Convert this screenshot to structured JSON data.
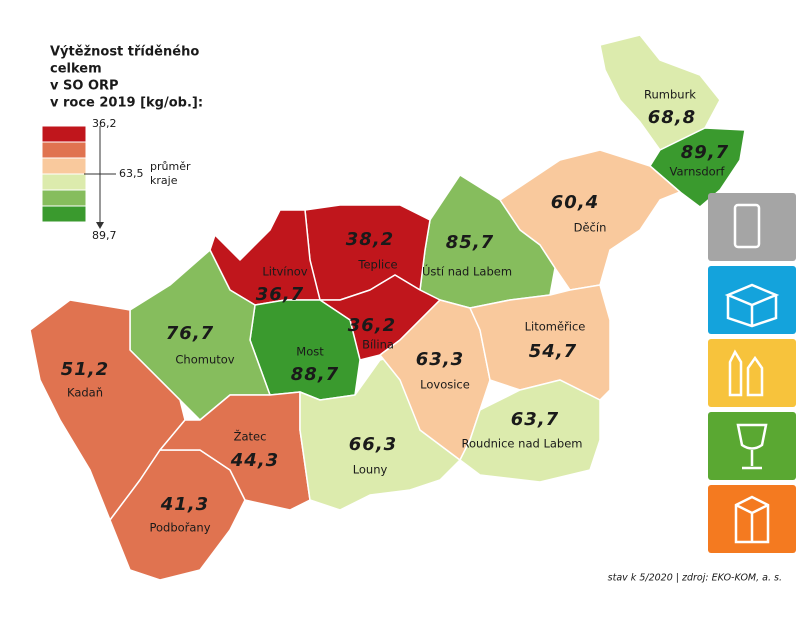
{
  "title": [
    "Výtěžnost tříděného",
    "celkem",
    "v SO ORP",
    "v roce 2019 [kg/ob.]:"
  ],
  "legend": {
    "colors": [
      "#c0161c",
      "#e07350",
      "#f9c99d",
      "#dcebad",
      "#86bd5d",
      "#3a9a2e"
    ],
    "top": "36,2",
    "middle": "63,5",
    "middle_note": [
      "průměr",
      "kraje"
    ],
    "bottom": "89,7"
  },
  "regions": [
    {
      "name": "Rumburk",
      "value": "68,8",
      "color": "#dcebad"
    },
    {
      "name": "Varnsdorf",
      "value": "89,7",
      "color": "#3a9a2e"
    },
    {
      "name": "Děčín",
      "value": "60,4",
      "color": "#f9c99d"
    },
    {
      "name": "Ústí nad Labem",
      "value": "85,7",
      "color": "#86bd5d"
    },
    {
      "name": "Teplice",
      "value": "38,2",
      "color": "#c0161c"
    },
    {
      "name": "Litvínov",
      "value": "36,7",
      "color": "#c0161c"
    },
    {
      "name": "Bílina",
      "value": "36,2",
      "color": "#c0161c"
    },
    {
      "name": "Most",
      "value": "88,7",
      "color": "#3a9a2e"
    },
    {
      "name": "Chomutov",
      "value": "76,7",
      "color": "#86bd5d"
    },
    {
      "name": "Kadaň",
      "value": "51,2",
      "color": "#e07350"
    },
    {
      "name": "Podbořany",
      "value": "41,3",
      "color": "#e07350"
    },
    {
      "name": "Žatec",
      "value": "44,3",
      "color": "#e07350"
    },
    {
      "name": "Louny",
      "value": "66,3",
      "color": "#dcebad"
    },
    {
      "name": "Lovosice",
      "value": "63,3",
      "color": "#f9c99d"
    },
    {
      "name": "Litoměřice",
      "value": "54,7",
      "color": "#f9c99d"
    },
    {
      "name": "Roudnice nad Labem",
      "value": "63,7",
      "color": "#dcebad"
    }
  ],
  "footer": "stav k 5/2020 | zdroj: EKO-KOM, a. s."
}
